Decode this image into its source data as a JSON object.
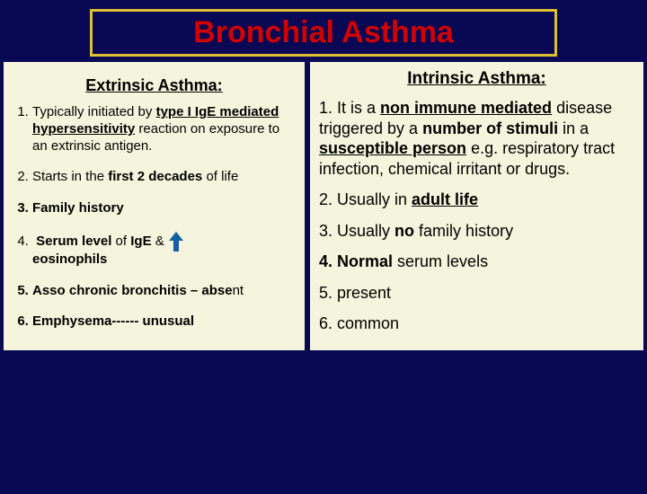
{
  "title": "Bronchial Asthma",
  "left": {
    "heading": "Extrinsic Asthma:",
    "items": {
      "i1a": "Typically initiated by ",
      "i1b": "type I IgE mediated hypersensitivity",
      "i1c": " reaction on exposure to an extrinsic antigen.",
      "i2a": "Starts in the ",
      "i2b": "first 2 decades",
      "i2c": " of life",
      "i3": "Family history",
      "i4a": "Serum level",
      "i4b": " of ",
      "i4c": "IgE",
      "i4d": " & ",
      "i4e": "eosinophils",
      "i5a": "Asso chronic bronchitis –",
      "i5b": " abse",
      "i5c": "nt",
      "i6a": "Emphysema------",
      "i6b": " unusual"
    }
  },
  "right": {
    "heading": "Intrinsic Asthma:",
    "p1a": "1. It is a ",
    "p1b": "non immune mediated",
    "p1c": " disease triggered by a ",
    "p1d": "number of stimuli",
    "p1e": " in a ",
    "p1f": "susceptible person",
    "p1g": " e.g. respiratory tract infection, chemical irritant or drugs.",
    "p2a": "2. Usually in ",
    "p2b": "adult life",
    "p3a": "3. Usually ",
    "p3b": "no",
    "p3c": " family history",
    "p4a": "4. Normal",
    "p4b": " serum levels",
    "p5": "5. present",
    "p6": "6. common"
  },
  "colors": {
    "bg": "#080854",
    "panel": "#f5f5dd",
    "title": "#d00000",
    "border": "#e0c030",
    "arrow": "#1560a0"
  }
}
